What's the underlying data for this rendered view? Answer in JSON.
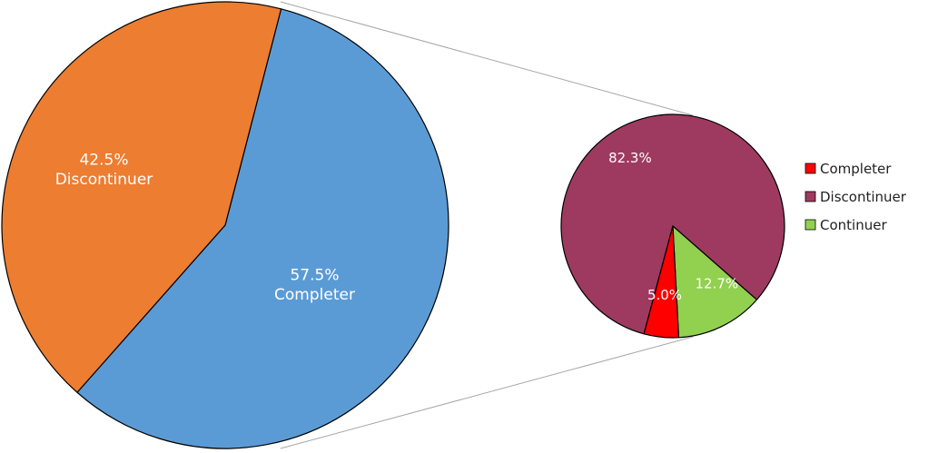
{
  "chart_data": [
    {
      "type": "pie",
      "title": "",
      "slices": [
        {
          "label": "Completer",
          "value": 57.5,
          "value_label": "57.5%",
          "color": "#5b9bd5"
        },
        {
          "label": "Discontinuer",
          "value": 42.5,
          "value_label": "42.5%",
          "color": "#ed7d31"
        }
      ]
    },
    {
      "type": "pie",
      "title": "",
      "slices": [
        {
          "label": "Discontinuer",
          "value": 82.3,
          "value_label": "82.3%",
          "color": "#9e3a5f"
        },
        {
          "label": "Continuer",
          "value": 12.7,
          "value_label": "12.7%",
          "color": "#92d050"
        },
        {
          "label": "Completer",
          "value": 5.0,
          "value_label": "5.0%",
          "color": "#ff0000"
        }
      ],
      "legend": {
        "position": "right",
        "entries": [
          {
            "label": "Completer",
            "color": "#ff0000"
          },
          {
            "label": "Discontinuer",
            "color": "#9e3a5f"
          },
          {
            "label": "Continuer",
            "color": "#92d050"
          }
        ]
      }
    }
  ]
}
